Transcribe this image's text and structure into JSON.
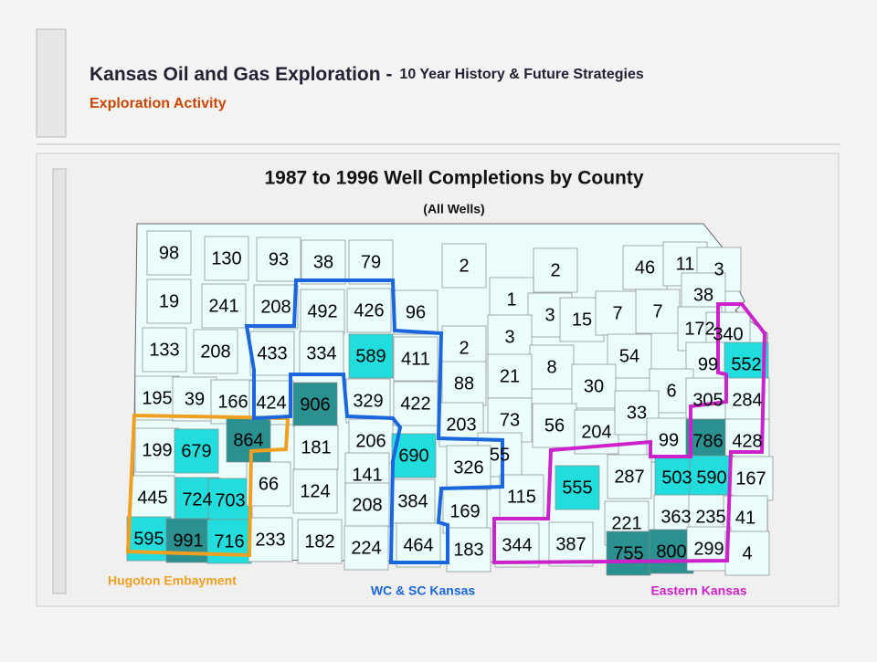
{
  "header": {
    "title": "Kansas Oil and Gas Exploration -",
    "title_suffix": "10 Year History & Future Strategies",
    "subtitle": "Exploration Activity"
  },
  "map": {
    "title": "1987 to 1996 Well Completions by County",
    "subtitle": "(All Wells)",
    "regions": [
      {
        "name": "Hugoton Embayment",
        "color": "#f0a020"
      },
      {
        "name": "WC & SC Kansas",
        "color": "#1a66dd"
      },
      {
        "name": "Eastern Kansas",
        "color": "#cc22cc"
      }
    ],
    "counties": {
      "values": [
        98,
        130,
        93,
        38,
        79,
        2,
        2,
        46,
        11,
        3,
        19,
        241,
        208,
        492,
        426,
        96,
        1,
        3,
        15,
        7,
        7,
        38,
        172,
        340,
        133,
        208,
        433,
        334,
        589,
        411,
        2,
        3,
        8,
        54,
        99,
        552,
        195,
        39,
        166,
        424,
        906,
        329,
        422,
        88,
        21,
        30,
        6,
        305,
        284,
        203,
        73,
        56,
        204,
        33,
        199,
        679,
        864,
        181,
        206,
        690,
        99,
        786,
        428,
        55,
        326,
        555,
        287,
        503,
        590,
        167,
        445,
        724,
        703,
        66,
        124,
        141,
        208,
        384,
        169,
        115,
        221,
        363,
        235,
        41,
        595,
        991,
        716,
        233,
        182,
        224,
        464,
        183,
        344,
        387,
        755,
        800,
        299,
        4
      ],
      "fills": [
        "L",
        "L",
        "L",
        "L",
        "L",
        "L",
        "L",
        "L",
        "L",
        "L",
        "L",
        "L",
        "L",
        "L",
        "L",
        "L",
        "L",
        "L",
        "L",
        "L",
        "L",
        "L",
        "L",
        "L",
        "L",
        "L",
        "L",
        "L",
        "M",
        "L",
        "L",
        "L",
        "L",
        "L",
        "L",
        "M",
        "L",
        "L",
        "L",
        "L",
        "D",
        "L",
        "L",
        "L",
        "L",
        "L",
        "L",
        "L",
        "L",
        "L",
        "L",
        "L",
        "L",
        "L",
        "L",
        "M",
        "D",
        "L",
        "L",
        "M",
        "L",
        "D",
        "L",
        "L",
        "L",
        "M",
        "L",
        "M",
        "M",
        "L",
        "L",
        "M",
        "M",
        "L",
        "L",
        "L",
        "L",
        "L",
        "L",
        "L",
        "L",
        "L",
        "L",
        "L",
        "M",
        "D",
        "M",
        "L",
        "L",
        "L",
        "L",
        "L",
        "L",
        "L",
        "D",
        "D",
        "L",
        "L"
      ],
      "shades": {
        "L": "#eafcfc",
        "M": "#22dddd",
        "D": "#2a9090"
      }
    }
  }
}
